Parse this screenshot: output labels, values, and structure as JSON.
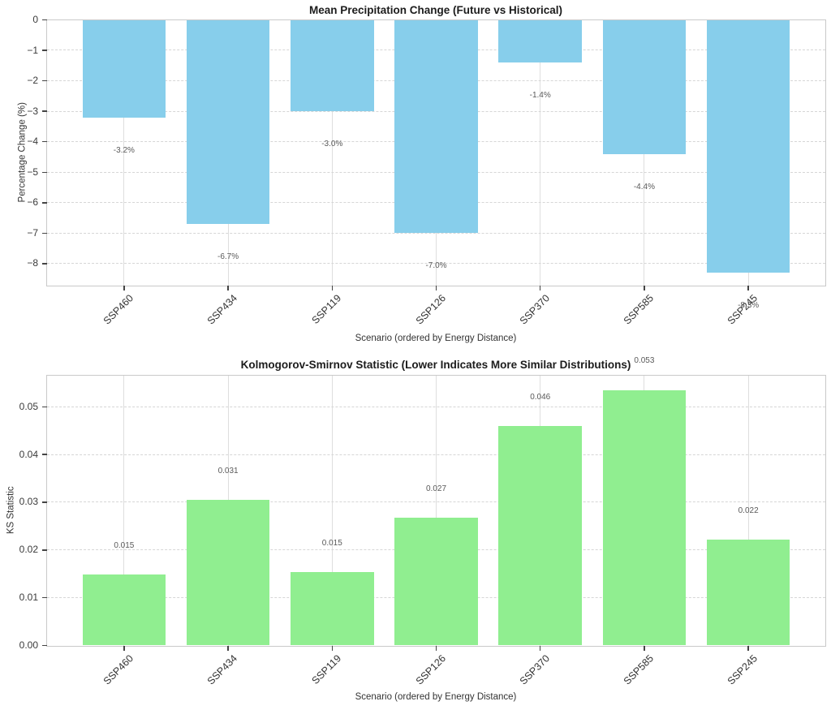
{
  "figure": {
    "background_color": "#ffffff"
  },
  "chart_data": [
    {
      "type": "bar",
      "title": "Mean Precipitation Change (Future vs Historical)",
      "xlabel": "Scenario (ordered by Energy Distance)",
      "ylabel": "Percentage Change (%)",
      "categories": [
        "SSP460",
        "SSP434",
        "SSP119",
        "SSP126",
        "SSP370",
        "SSP585",
        "SSP245"
      ],
      "values": [
        -3.2,
        -6.7,
        -3.0,
        -7.0,
        -1.4,
        -4.4,
        -8.3
      ],
      "value_labels": [
        "-3.2%",
        "-6.7%",
        "-3.0%",
        "-7.0%",
        "-1.4%",
        "-4.4%",
        "-8.3%"
      ],
      "bar_color": "#87CEEB",
      "ylim": [
        -8.72,
        0
      ],
      "xlim": [
        -0.74,
        6.74
      ],
      "bar_width_units": 0.8,
      "yticks": [
        0,
        -1,
        -2,
        -3,
        -4,
        -5,
        -6,
        -7,
        -8
      ],
      "ytick_labels": [
        "0",
        "−1",
        "−2",
        "−3",
        "−4",
        "−5",
        "−6",
        "−7",
        "−8"
      ],
      "value_label_offset": -1.09,
      "grid": {
        "y": "dashed",
        "x": "solid"
      },
      "legend": null
    },
    {
      "type": "bar",
      "title": "Kolmogorov-Smirnov Statistic (Lower Indicates More Similar Distributions)",
      "xlabel": "Scenario (ordered by Energy Distance)",
      "ylabel": "KS Statistic",
      "categories": [
        "SSP460",
        "SSP434",
        "SSP119",
        "SSP126",
        "SSP370",
        "SSP585",
        "SSP245"
      ],
      "values": [
        0.0148,
        0.0305,
        0.0153,
        0.0268,
        0.0459,
        0.0535,
        0.0222
      ],
      "value_labels": [
        "0.015",
        "0.031",
        "0.015",
        "0.027",
        "0.046",
        "0.053",
        "0.022"
      ],
      "bar_color": "#90EE90",
      "ylim": [
        0,
        0.0566
      ],
      "xlim": [
        -0.74,
        6.74
      ],
      "bar_width_units": 0.8,
      "yticks": [
        0,
        0.01,
        0.02,
        0.03,
        0.04,
        0.05
      ],
      "ytick_labels": [
        "0.00",
        "0.01",
        "0.02",
        "0.03",
        "0.04",
        "0.05"
      ],
      "value_label_offset": 0.006,
      "grid": {
        "y": "dashed",
        "x": "solid"
      },
      "legend": null
    }
  ]
}
